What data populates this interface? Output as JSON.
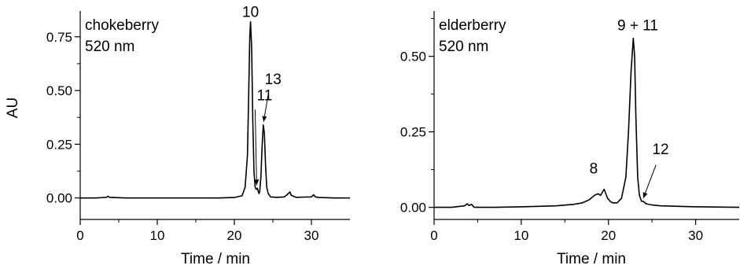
{
  "chart_data": [
    {
      "type": "line",
      "panel": "left",
      "annotation_lines": [
        "chokeberry",
        "520 nm"
      ],
      "xlabel": "Time / min",
      "ylabel": "AU",
      "xlim": [
        0,
        35
      ],
      "ylim": [
        -0.1,
        0.87
      ],
      "xticks": [
        0,
        10,
        20,
        30
      ],
      "xtick_labels": [
        "0",
        "10",
        "20",
        "30"
      ],
      "yticks": [
        0.0,
        0.25,
        0.5,
        0.75
      ],
      "ytick_labels": [
        "0.00",
        "0.25",
        "0.50",
        "0.75"
      ],
      "grid": false,
      "series": [
        {
          "color": "#000000",
          "x": [
            0.0,
            2.0,
            3.4,
            3.6,
            3.8,
            6.0,
            10.0,
            15.0,
            18.0,
            20.0,
            21.0,
            21.4,
            21.7,
            21.9,
            22.0,
            22.1,
            22.25,
            22.4,
            22.55,
            22.7,
            22.85,
            23.0,
            23.1,
            23.2,
            23.3,
            23.45,
            23.6,
            23.75,
            23.9,
            24.05,
            24.2,
            24.4,
            24.7,
            25.5,
            26.5,
            27.0,
            27.2,
            27.4,
            28.0,
            30.0,
            30.3,
            30.5,
            31.0,
            33.0,
            35.0
          ],
          "y": [
            0.0,
            0.0,
            0.003,
            0.008,
            0.003,
            0.0,
            0.0,
            0.0,
            0.0,
            0.002,
            0.01,
            0.05,
            0.2,
            0.55,
            0.75,
            0.82,
            0.7,
            0.35,
            0.12,
            0.05,
            0.04,
            0.045,
            0.03,
            0.02,
            0.03,
            0.1,
            0.24,
            0.34,
            0.3,
            0.15,
            0.05,
            0.02,
            0.005,
            0.003,
            0.005,
            0.02,
            0.028,
            0.012,
            0.003,
            0.005,
            0.015,
            0.005,
            0.002,
            0.0,
            0.0
          ]
        }
      ],
      "peak_labels": [
        {
          "text": "10",
          "x": 22.1,
          "y": 0.82
        },
        {
          "text": "11",
          "x": 22.9,
          "y": 0.045
        },
        {
          "text": "13",
          "x": 23.8,
          "y": 0.34
        }
      ]
    },
    {
      "type": "line",
      "panel": "right",
      "annotation_lines": [
        "elderberry",
        "520 nm"
      ],
      "xlabel": "Time / min",
      "ylabel": "",
      "xlim": [
        0,
        35
      ],
      "ylim": [
        -0.04,
        0.65
      ],
      "xticks": [
        0,
        10,
        20,
        30
      ],
      "xtick_labels": [
        "0",
        "10",
        "20",
        "30"
      ],
      "yticks": [
        0.0,
        0.25,
        0.5
      ],
      "ytick_labels": [
        "0.00",
        "0.25",
        "0.50"
      ],
      "grid": false,
      "series": [
        {
          "color": "#000000",
          "x": [
            0.0,
            2.0,
            3.5,
            3.8,
            4.0,
            4.3,
            4.6,
            7.0,
            10.0,
            14.0,
            16.0,
            17.0,
            17.8,
            18.4,
            18.8,
            19.1,
            19.3,
            19.5,
            19.7,
            19.9,
            20.2,
            20.5,
            21.0,
            21.5,
            22.0,
            22.3,
            22.6,
            22.85,
            23.0,
            23.15,
            23.35,
            23.55,
            23.8,
            24.0,
            24.3,
            25.0,
            26.0,
            30.0,
            35.0
          ],
          "y": [
            0.0,
            0.0,
            0.005,
            0.012,
            0.006,
            0.01,
            0.0,
            0.0,
            0.002,
            0.005,
            0.01,
            0.015,
            0.025,
            0.04,
            0.045,
            0.04,
            0.05,
            0.06,
            0.045,
            0.03,
            0.02,
            0.015,
            0.015,
            0.03,
            0.1,
            0.25,
            0.45,
            0.56,
            0.5,
            0.3,
            0.1,
            0.04,
            0.02,
            0.02,
            0.012,
            0.008,
            0.005,
            0.002,
            0.0
          ]
        }
      ],
      "peak_labels": [
        {
          "text": "8",
          "x": 19.3,
          "y": 0.06
        },
        {
          "text": "9 + 11",
          "x": 23.0,
          "y": 0.56
        },
        {
          "text": "12",
          "x": 24.0,
          "y": 0.02
        }
      ]
    }
  ]
}
